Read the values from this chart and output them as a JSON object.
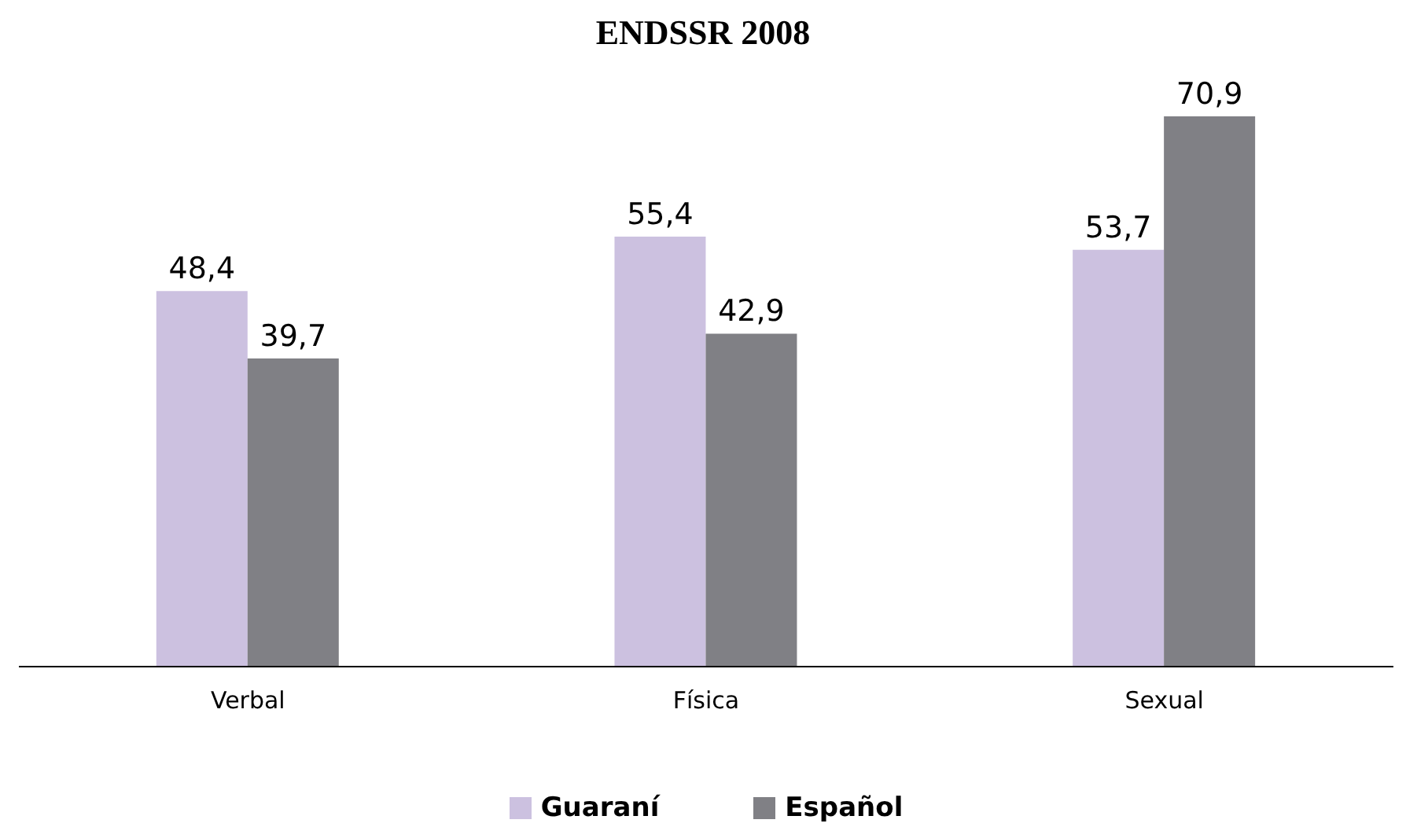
{
  "chart_data": {
    "type": "bar",
    "title": "ENDSSR 2008",
    "categories": [
      "Verbal",
      "Física",
      "Sexual"
    ],
    "series": [
      {
        "name": "Guaraní",
        "color": "#ccc1e0",
        "values": [
          48.4,
          55.4,
          53.7
        ],
        "value_labels": [
          "48,4",
          "55,4",
          "53,7"
        ]
      },
      {
        "name": "Español",
        "color": "#808085",
        "values": [
          39.7,
          42.9,
          70.9
        ],
        "value_labels": [
          "39,7",
          "42,9",
          "70,9"
        ]
      }
    ],
    "legend": "bottom",
    "grid": false
  }
}
